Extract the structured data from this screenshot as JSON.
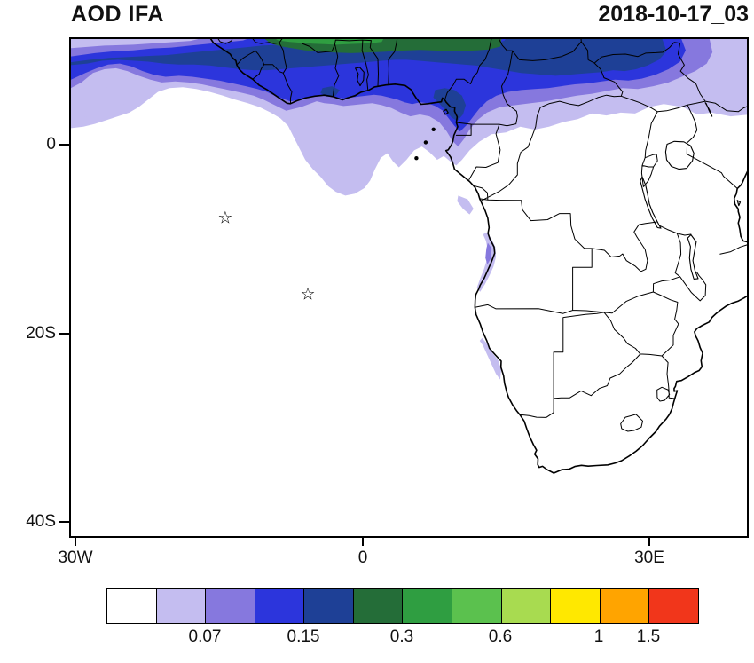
{
  "header": {
    "title": "AOD IFA",
    "timestamp": "2018-10-17_03"
  },
  "axes": {
    "y_ticks": [
      {
        "label": "0",
        "lat": 0
      },
      {
        "label": "20S",
        "lat": -20
      },
      {
        "label": "40S",
        "lat": -40
      }
    ],
    "x_ticks": [
      {
        "label": "30W",
        "lon": -30
      },
      {
        "label": "0",
        "lon": 0
      },
      {
        "label": "30E",
        "lon": 30
      }
    ]
  },
  "map": {
    "markers": [
      {
        "name": "ascension-island-star",
        "glyph": "☆",
        "lon": -14.37,
        "lat": -7.95
      },
      {
        "name": "st-helena-star",
        "glyph": "☆",
        "lon": -5.72,
        "lat": -15.96
      }
    ]
  },
  "colorbar": {
    "colors": [
      "#ffffff",
      "#c4bdf0",
      "#8678de",
      "#2c35dc",
      "#1e4096",
      "#246d38",
      "#2f9e41",
      "#5bc14e",
      "#a8db50",
      "#ffe800",
      "#ffa400",
      "#f1361b"
    ],
    "labels": [
      {
        "text": "0.07",
        "boundary": 2
      },
      {
        "text": "0.15",
        "boundary": 4
      },
      {
        "text": "0.3",
        "boundary": 6
      },
      {
        "text": "0.6",
        "boundary": 8
      },
      {
        "text": "1",
        "boundary": 10
      },
      {
        "text": "1.5",
        "boundary": 11
      }
    ]
  },
  "chart_data": {
    "type": "heatmap",
    "subtype": "filled-contour-map",
    "title": "AOD IFA",
    "timestamp_label": "2018-10-17_03",
    "variable": "Aerosol Optical Depth",
    "map_extent": {
      "lon_min": -30.5,
      "lon_max": 40.2,
      "lat_min": -41.5,
      "lat_max": 11.2
    },
    "axis_ticks": {
      "x": [
        "30W",
        "0",
        "30E"
      ],
      "y": [
        "0",
        "20S",
        "40S"
      ]
    },
    "colorbar_labeled_levels": [
      0.07,
      0.15,
      0.3,
      0.6,
      1,
      1.5
    ],
    "palette": [
      "#ffffff",
      "#c4bdf0",
      "#8678de",
      "#2c35dc",
      "#1e4096",
      "#246d38",
      "#2f9e41",
      "#5bc14e",
      "#a8db50",
      "#ffe800",
      "#ffa400",
      "#f1361b"
    ],
    "legend_position": "bottom",
    "features": [
      "High AOD plume (>0.3, darkest >0.6 greens at northern edge) spanning ~5N-11N across the Gulf of Guinea and West/Central Africa, strongest between ~10W and 15E",
      "Moderate AOD (0.07-0.3) band extends west over the Atlantic to 30W near 7-10N and dips south over the ocean to ~5S near 0-5W",
      "Light AOD (0.07-0.15) strips hugging the Angola and Namibia coasts",
      "Two open-star station markers in the South Atlantic: Ascension Island (~14W, 8S) and St Helena (~6W, 16S)"
    ]
  }
}
